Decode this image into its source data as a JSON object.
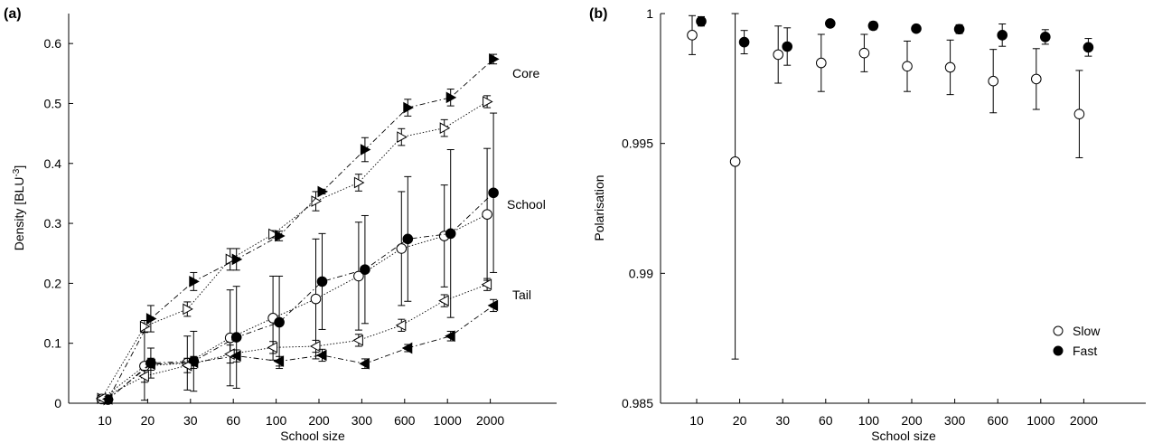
{
  "chart_data": [
    {
      "type": "line",
      "panel_label": "(a)",
      "xlabel": "School size",
      "ylabel": "Density [BLU",
      "ylabel_sup": "-3",
      "ylabel_close": "]",
      "categories": [
        "10",
        "20",
        "30",
        "60",
        "100",
        "200",
        "300",
        "600",
        "1000",
        "2000"
      ],
      "ylim": [
        0,
        0.65
      ],
      "yticks": [
        0,
        0.1,
        0.2,
        0.3,
        0.4,
        0.5,
        0.6
      ],
      "ytick_labels": [
        "0",
        "0.1",
        "0.2",
        "0.3",
        "0.4",
        "0.5",
        "0.6"
      ],
      "grid": false,
      "series": [
        {
          "group": "Core",
          "speed": "Slow",
          "marker": "triangle-right-open",
          "line": "dotted",
          "values": [
            0.008,
            0.128,
            0.157,
            0.24,
            0.282,
            0.337,
            0.368,
            0.444,
            0.459,
            0.503
          ],
          "err": [
            0.004,
            0.01,
            0.012,
            0.018,
            0.006,
            0.016,
            0.014,
            0.014,
            0.014,
            0.01
          ]
        },
        {
          "group": "Core",
          "speed": "Fast",
          "marker": "triangle-right-filled",
          "line": "dashdot",
          "values": [
            0.006,
            0.141,
            0.203,
            0.24,
            0.279,
            0.353,
            0.423,
            0.493,
            0.51,
            0.574
          ],
          "err": [
            0.004,
            0.022,
            0.015,
            0.018,
            0.008,
            0.004,
            0.02,
            0.014,
            0.014,
            0.008
          ]
        },
        {
          "group": "School",
          "speed": "Slow",
          "marker": "circle-open",
          "line": "dotted",
          "values": [
            0.007,
            0.062,
            0.067,
            0.109,
            0.142,
            0.174,
            0.212,
            0.258,
            0.279,
            0.315
          ],
          "err": [
            0.004,
            0.057,
            0.045,
            0.08,
            0.07,
            0.1,
            0.09,
            0.095,
            0.085,
            0.11
          ]
        },
        {
          "group": "School",
          "speed": "Fast",
          "marker": "circle-filled",
          "line": "dashdot",
          "values": [
            0.006,
            0.067,
            0.07,
            0.11,
            0.135,
            0.203,
            0.223,
            0.274,
            0.283,
            0.351
          ],
          "err": [
            0.003,
            0.025,
            0.05,
            0.085,
            0.077,
            0.08,
            0.09,
            0.104,
            0.14,
            0.133
          ]
        },
        {
          "group": "Tail",
          "speed": "Slow",
          "marker": "triangle-left-open",
          "line": "dotted",
          "values": [
            0.008,
            0.045,
            0.063,
            0.082,
            0.093,
            0.095,
            0.105,
            0.13,
            0.171,
            0.198
          ],
          "err": [
            0.004,
            0.01,
            0.012,
            0.015,
            0.01,
            0.01,
            0.01,
            0.01,
            0.01,
            0.01
          ]
        },
        {
          "group": "Tail",
          "speed": "Fast",
          "marker": "triangle-left-filled",
          "line": "dashdot",
          "values": [
            0.007,
            0.065,
            0.068,
            0.079,
            0.07,
            0.08,
            0.066,
            0.092,
            0.112,
            0.163
          ],
          "err": [
            0.004,
            0.01,
            0.01,
            0.01,
            0.008,
            0.01,
            0.008,
            0.006,
            0.008,
            0.01
          ]
        }
      ],
      "annotations": [
        "Core",
        "School",
        "Tail"
      ]
    },
    {
      "type": "scatter",
      "panel_label": "(b)",
      "xlabel": "School size",
      "ylabel": "Polarisation",
      "categories": [
        "10",
        "20",
        "30",
        "60",
        "100",
        "200",
        "300",
        "600",
        "1000",
        "2000"
      ],
      "ylim": [
        0.985,
        1
      ],
      "yticks": [
        0.985,
        0.99,
        0.995,
        1
      ],
      "ytick_labels": [
        "0.985",
        "0.99",
        "0.995",
        "1"
      ],
      "grid": false,
      "legend_position": "bottom-right",
      "series": [
        {
          "name": "Slow",
          "marker": "circle-open",
          "values": [
            0.99917,
            0.9943,
            0.99842,
            0.9981,
            0.99848,
            0.99797,
            0.99793,
            0.9974,
            0.99748,
            0.99613
          ],
          "err": [
            0.00075,
            0.0076,
            0.0011,
            0.0011,
            0.00072,
            0.00097,
            0.00105,
            0.00122,
            0.00117,
            0.00168
          ]
        },
        {
          "name": "Fast",
          "marker": "circle-filled",
          "values": [
            0.9997,
            0.9989,
            0.99873,
            0.99962,
            0.99953,
            0.99942,
            0.9994,
            0.99917,
            0.9991,
            0.9987
          ],
          "err": [
            0.00018,
            0.00045,
            0.00072,
            0.0001,
            0.00015,
            0.00013,
            0.00017,
            0.00043,
            0.00028,
            0.00034
          ]
        }
      ]
    }
  ]
}
